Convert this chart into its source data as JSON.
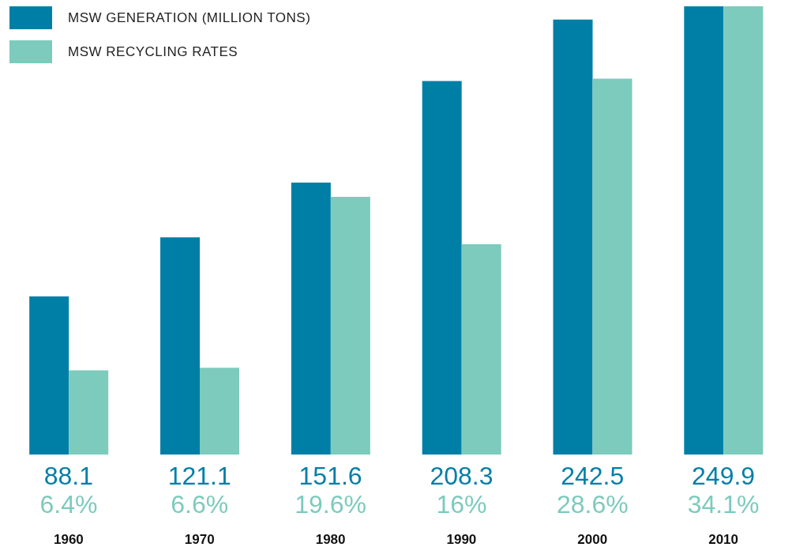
{
  "chart_data": {
    "type": "bar",
    "categories": [
      "1960",
      "1970",
      "1980",
      "1990",
      "2000",
      "2010"
    ],
    "legend": "top left",
    "series": [
      {
        "name": "MSW GENERATION (MILLION TONS)",
        "color": "#007fa6",
        "values": [
          88.1,
          121.1,
          151.6,
          208.3,
          242.5,
          249.9
        ],
        "value_labels": [
          "88.1",
          "121.1",
          "151.6",
          "208.3",
          "242.5",
          "249.9"
        ]
      },
      {
        "name": "MSW RECYCLING RATES",
        "color": "#7ccbbd",
        "axis": "y2",
        "values": [
          6.4,
          6.6,
          19.6,
          16,
          28.6,
          34.1
        ],
        "value_labels": [
          "6.4%",
          "6.6%",
          "19.6%",
          "16%",
          "28.6%",
          "34.1%"
        ]
      }
    ],
    "tick_labels": "x"
  }
}
